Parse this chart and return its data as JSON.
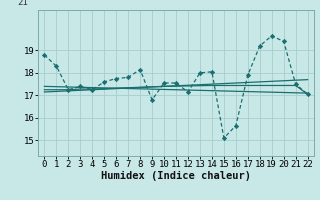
{
  "bg_color": "#c8e8e8",
  "line_color": "#1a6e6e",
  "grid_color": "#a8cccc",
  "axis_color": "#7aacac",
  "xlabel": "Humidex (Indice chaleur)",
  "xlabel_fontsize": 7.5,
  "tick_fontsize": 6.5,
  "ylim": [
    14.3,
    20.8
  ],
  "xlim": [
    -0.5,
    22.5
  ],
  "yticks": [
    15,
    16,
    17,
    18,
    19
  ],
  "xticks": [
    0,
    1,
    2,
    3,
    4,
    5,
    6,
    7,
    8,
    9,
    10,
    11,
    12,
    13,
    14,
    15,
    16,
    17,
    18,
    19,
    20,
    21,
    22
  ],
  "ytop_label": "21",
  "series1_x": [
    0,
    1,
    2,
    3,
    4,
    5,
    6,
    7,
    8,
    9,
    10,
    11,
    12,
    13,
    14,
    15,
    16,
    17,
    18,
    19,
    20,
    21,
    22
  ],
  "series1_y": [
    18.8,
    18.3,
    17.25,
    17.4,
    17.25,
    17.6,
    17.75,
    17.8,
    18.15,
    16.8,
    17.55,
    17.55,
    17.15,
    18.0,
    18.05,
    15.1,
    15.65,
    17.9,
    19.2,
    19.65,
    19.4,
    17.5,
    17.05
  ],
  "series2_x": [
    0,
    22
  ],
  "series2_y": [
    17.15,
    17.7
  ],
  "series3_x": [
    0,
    22
  ],
  "series3_y": [
    17.4,
    17.1
  ],
  "series4_x": [
    0,
    1,
    2,
    3,
    4,
    5,
    6,
    7,
    8,
    9,
    10,
    11,
    12,
    13,
    14,
    15,
    16,
    17,
    18,
    19,
    20,
    21,
    22
  ],
  "series4_y": [
    17.25,
    17.25,
    17.25,
    17.28,
    17.28,
    17.3,
    17.32,
    17.34,
    17.36,
    17.38,
    17.4,
    17.41,
    17.42,
    17.43,
    17.44,
    17.44,
    17.44,
    17.44,
    17.44,
    17.44,
    17.44,
    17.44,
    17.05
  ]
}
